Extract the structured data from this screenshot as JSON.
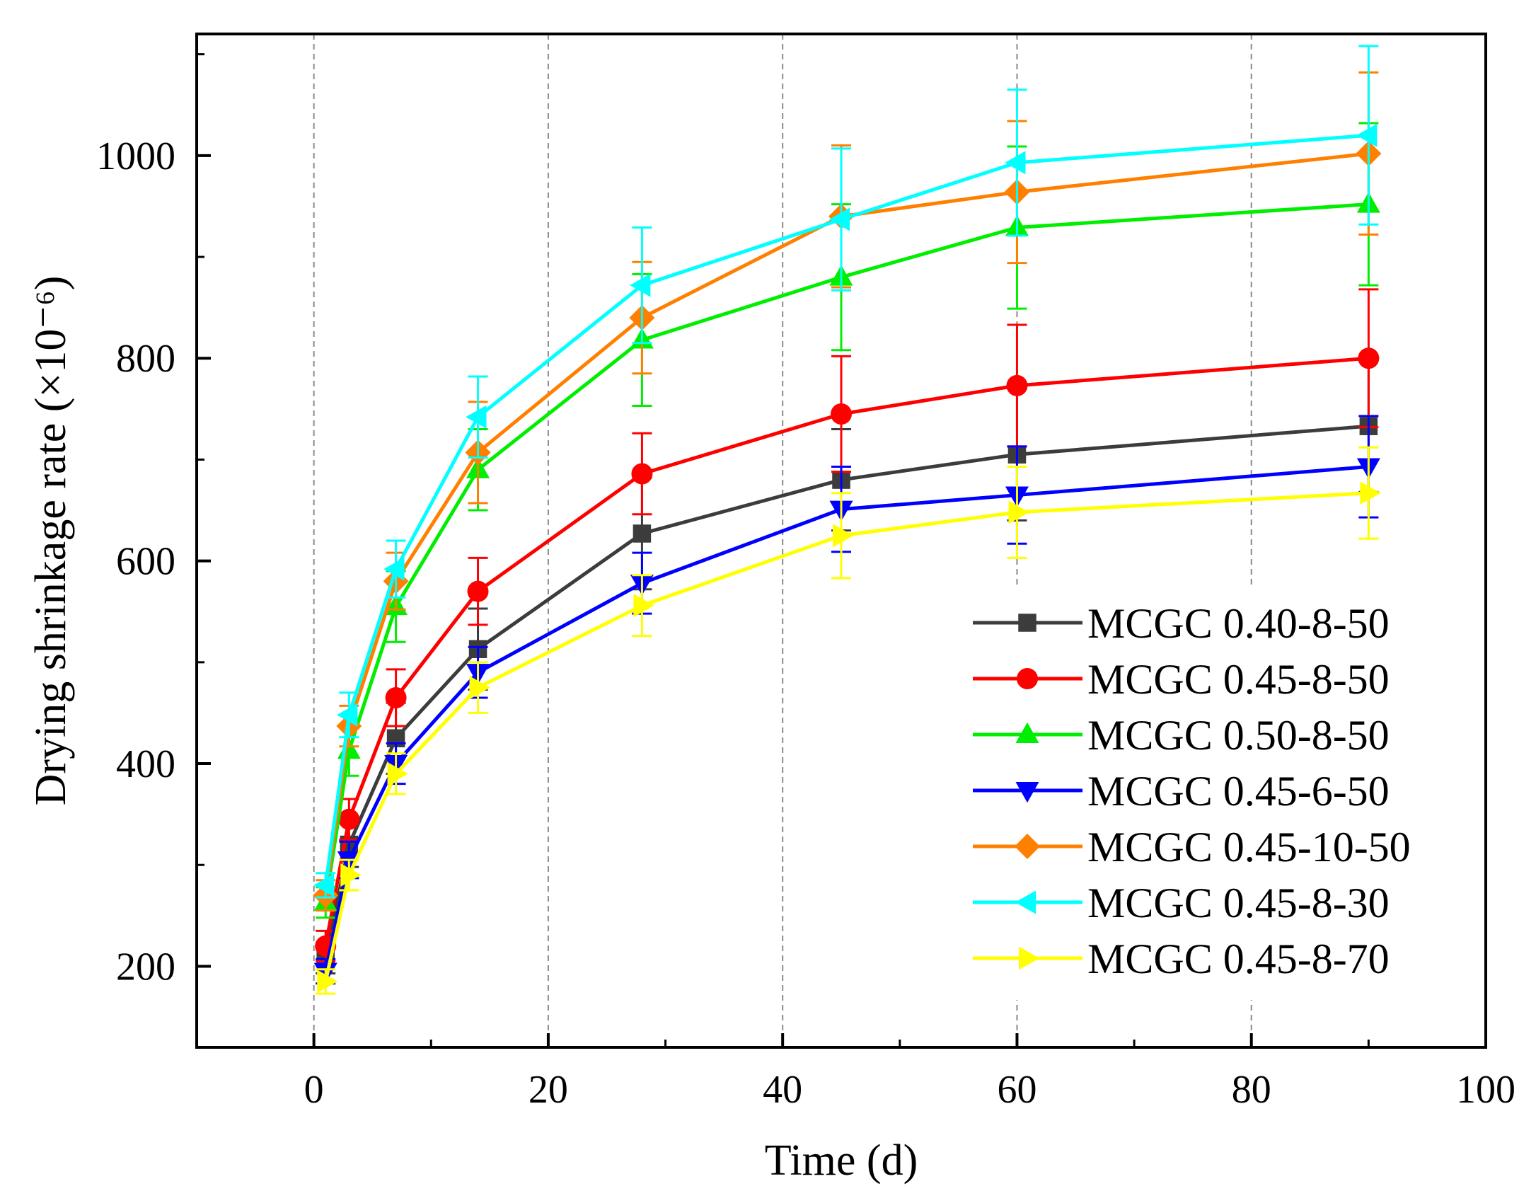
{
  "chart_data": {
    "type": "line",
    "xlabel": "Time (d)",
    "ylabel": "Drying shrinkage rate (×10⁻⁶)",
    "xlim": [
      -10,
      100
    ],
    "ylim": [
      120,
      1120
    ],
    "xticks": [
      0,
      20,
      40,
      60,
      80,
      100
    ],
    "yticks": [
      200,
      400,
      600,
      800,
      1000
    ],
    "x_minor_step": 10,
    "y_minor_step": 100,
    "grid": "vertical dashed at major x ticks",
    "legend_position": "bottom-right",
    "x": [
      1,
      3,
      7,
      14,
      28,
      45,
      60,
      90
    ],
    "series": [
      {
        "name": "MCGC 0.40-8-50",
        "color": "#3c3c3c",
        "marker": "square",
        "values": [
          208,
          320,
          425,
          513,
          627,
          680,
          705,
          733
        ],
        "errors": [
          15,
          22,
          35,
          40,
          55,
          50,
          65,
          65
        ]
      },
      {
        "name": "MCGC 0.45-8-50",
        "color": "#ff0000",
        "marker": "circle",
        "values": [
          220,
          345,
          465,
          570,
          686,
          745,
          773,
          800
        ],
        "errors": [
          15,
          20,
          28,
          33,
          40,
          57,
          60,
          68
        ]
      },
      {
        "name": "MCGC 0.50-8-50",
        "color": "#00ee00",
        "marker": "triangle-up",
        "values": [
          263,
          413,
          555,
          690,
          818,
          880,
          929,
          952
        ],
        "errors": [
          15,
          25,
          35,
          40,
          65,
          72,
          80,
          80
        ]
      },
      {
        "name": "MCGC 0.45-6-50",
        "color": "#0000ff",
        "marker": "triangle-down",
        "values": [
          195,
          305,
          400,
          490,
          578,
          651,
          665,
          693
        ],
        "errors": [
          12,
          18,
          20,
          25,
          30,
          42,
          48,
          50
        ]
      },
      {
        "name": "MCGC 0.45-10-50",
        "color": "#ff8000",
        "marker": "diamond",
        "values": [
          270,
          437,
          580,
          707,
          840,
          940,
          964,
          1002
        ],
        "errors": [
          15,
          20,
          28,
          50,
          55,
          70,
          70,
          80
        ]
      },
      {
        "name": "MCGC 0.45-8-30",
        "color": "#00ffff",
        "marker": "triangle-left",
        "values": [
          280,
          448,
          592,
          742,
          872,
          937,
          993,
          1020
        ],
        "errors": [
          12,
          22,
          28,
          40,
          57,
          70,
          72,
          88
        ]
      },
      {
        "name": "MCGC 0.45-8-70",
        "color": "#ffff00",
        "marker": "triangle-right",
        "values": [
          185,
          290,
          390,
          475,
          556,
          625,
          648,
          667
        ],
        "errors": [
          12,
          15,
          20,
          25,
          30,
          42,
          45,
          45
        ]
      }
    ]
  }
}
